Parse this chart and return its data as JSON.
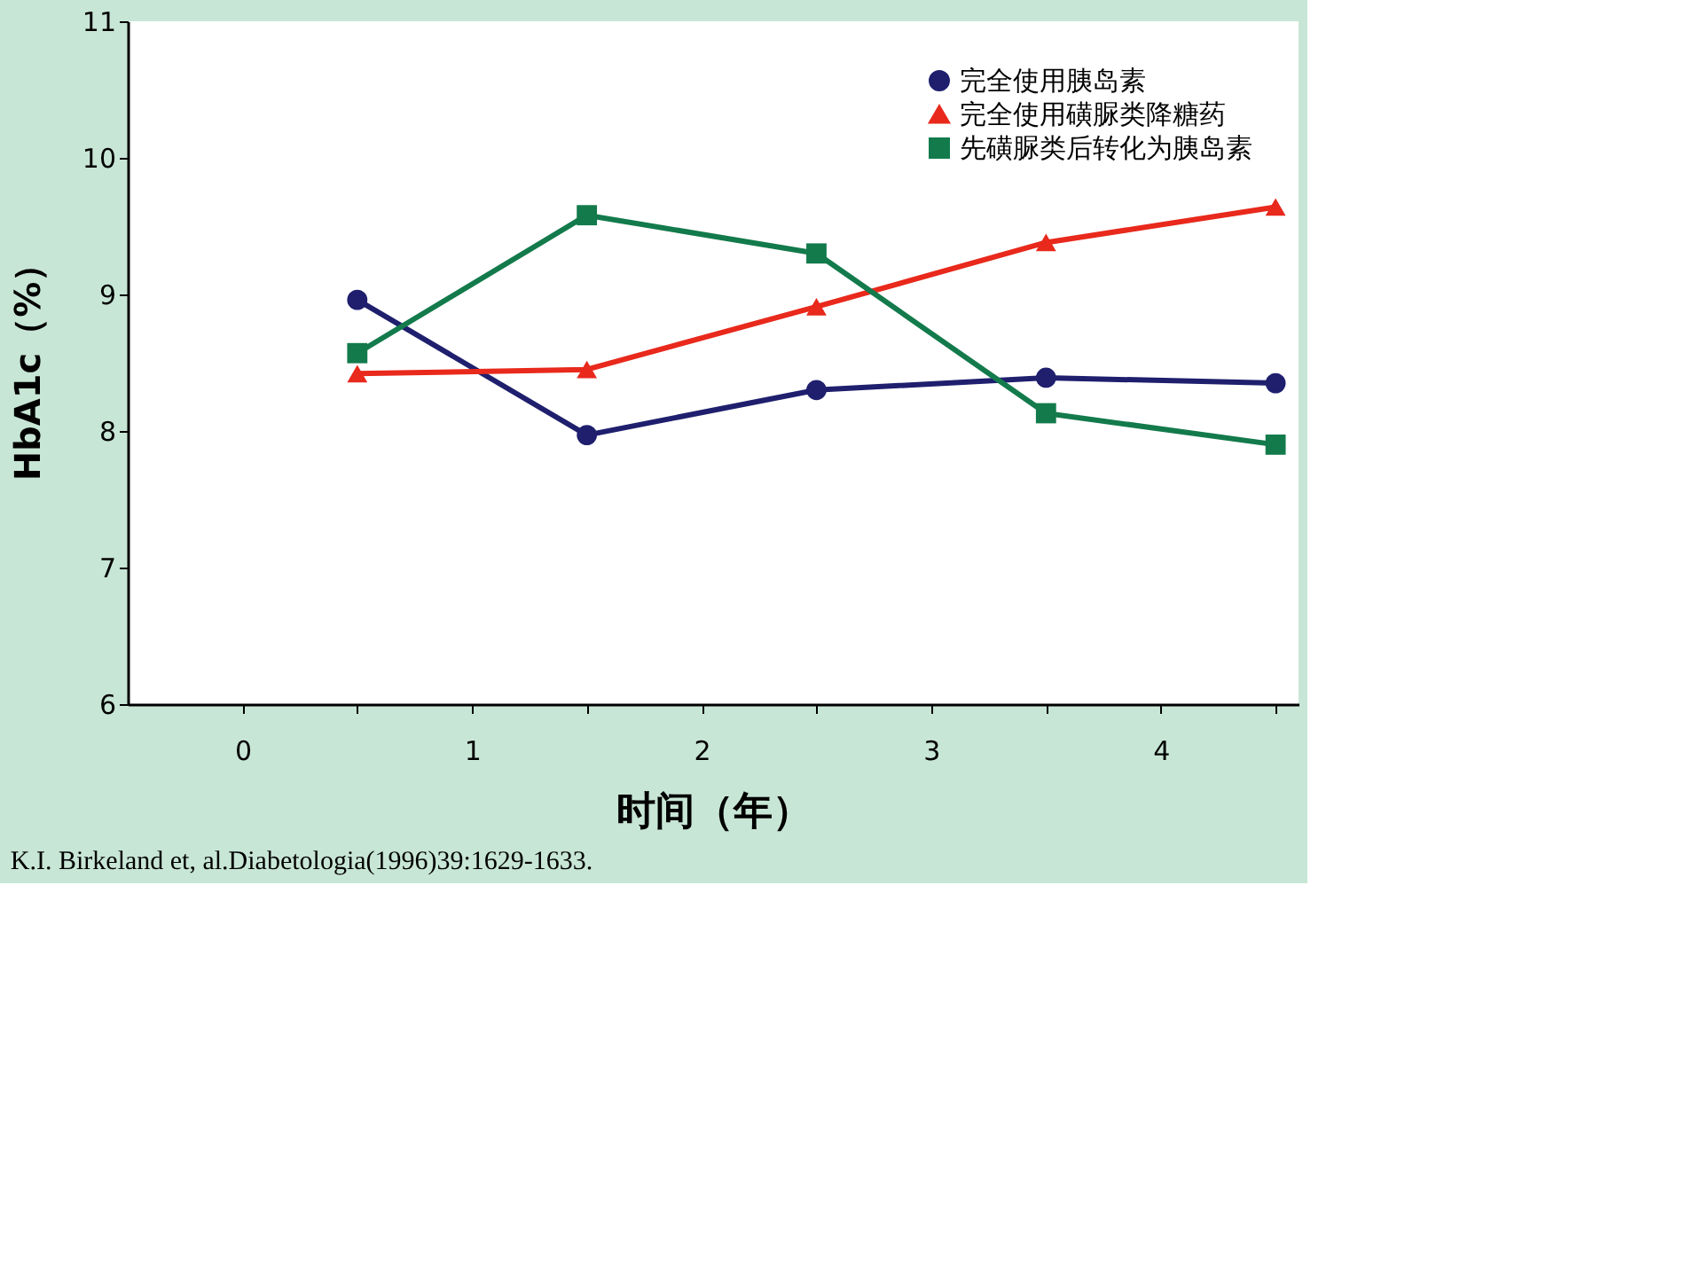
{
  "chart_data": {
    "type": "line",
    "xlabel": "时间（年）",
    "ylabel": "HbA1c（%）",
    "x": [
      0.5,
      1.5,
      2.5,
      3.5,
      4.5
    ],
    "series": [
      {
        "name": "完全使用胰岛素",
        "color": "#1f1f6e",
        "marker": "circle",
        "values": [
          8.96,
          7.97,
          8.3,
          8.39,
          8.35
        ]
      },
      {
        "name": "完全使用磺脲类降糖药",
        "color": "#e8291c",
        "marker": "triangle",
        "values": [
          8.42,
          8.45,
          8.91,
          9.38,
          9.64
        ]
      },
      {
        "name": "先磺脲类后转化为胰岛素",
        "color": "#137a4c",
        "marker": "square",
        "values": [
          8.57,
          9.58,
          9.3,
          8.13,
          7.9
        ]
      }
    ],
    "xlim": [
      -0.5,
      4.6
    ],
    "xticks": [
      0,
      1,
      2,
      3,
      4,
      {
        "value": 0.5,
        "label": null
      },
      {
        "value": 1.5,
        "label": null
      },
      {
        "value": 2.5,
        "label": null
      },
      {
        "value": 3.5,
        "label": null
      },
      {
        "value": 4.5,
        "label": null
      }
    ],
    "ylim": [
      6,
      11
    ],
    "yticks": [
      6,
      7,
      8,
      9,
      10,
      11
    ],
    "grid": false,
    "legend": "top right",
    "line_style": "solid",
    "annotations": [
      "K.I. Birkeland et, al.Diabetologia(1996)39:1629-1633."
    ]
  }
}
